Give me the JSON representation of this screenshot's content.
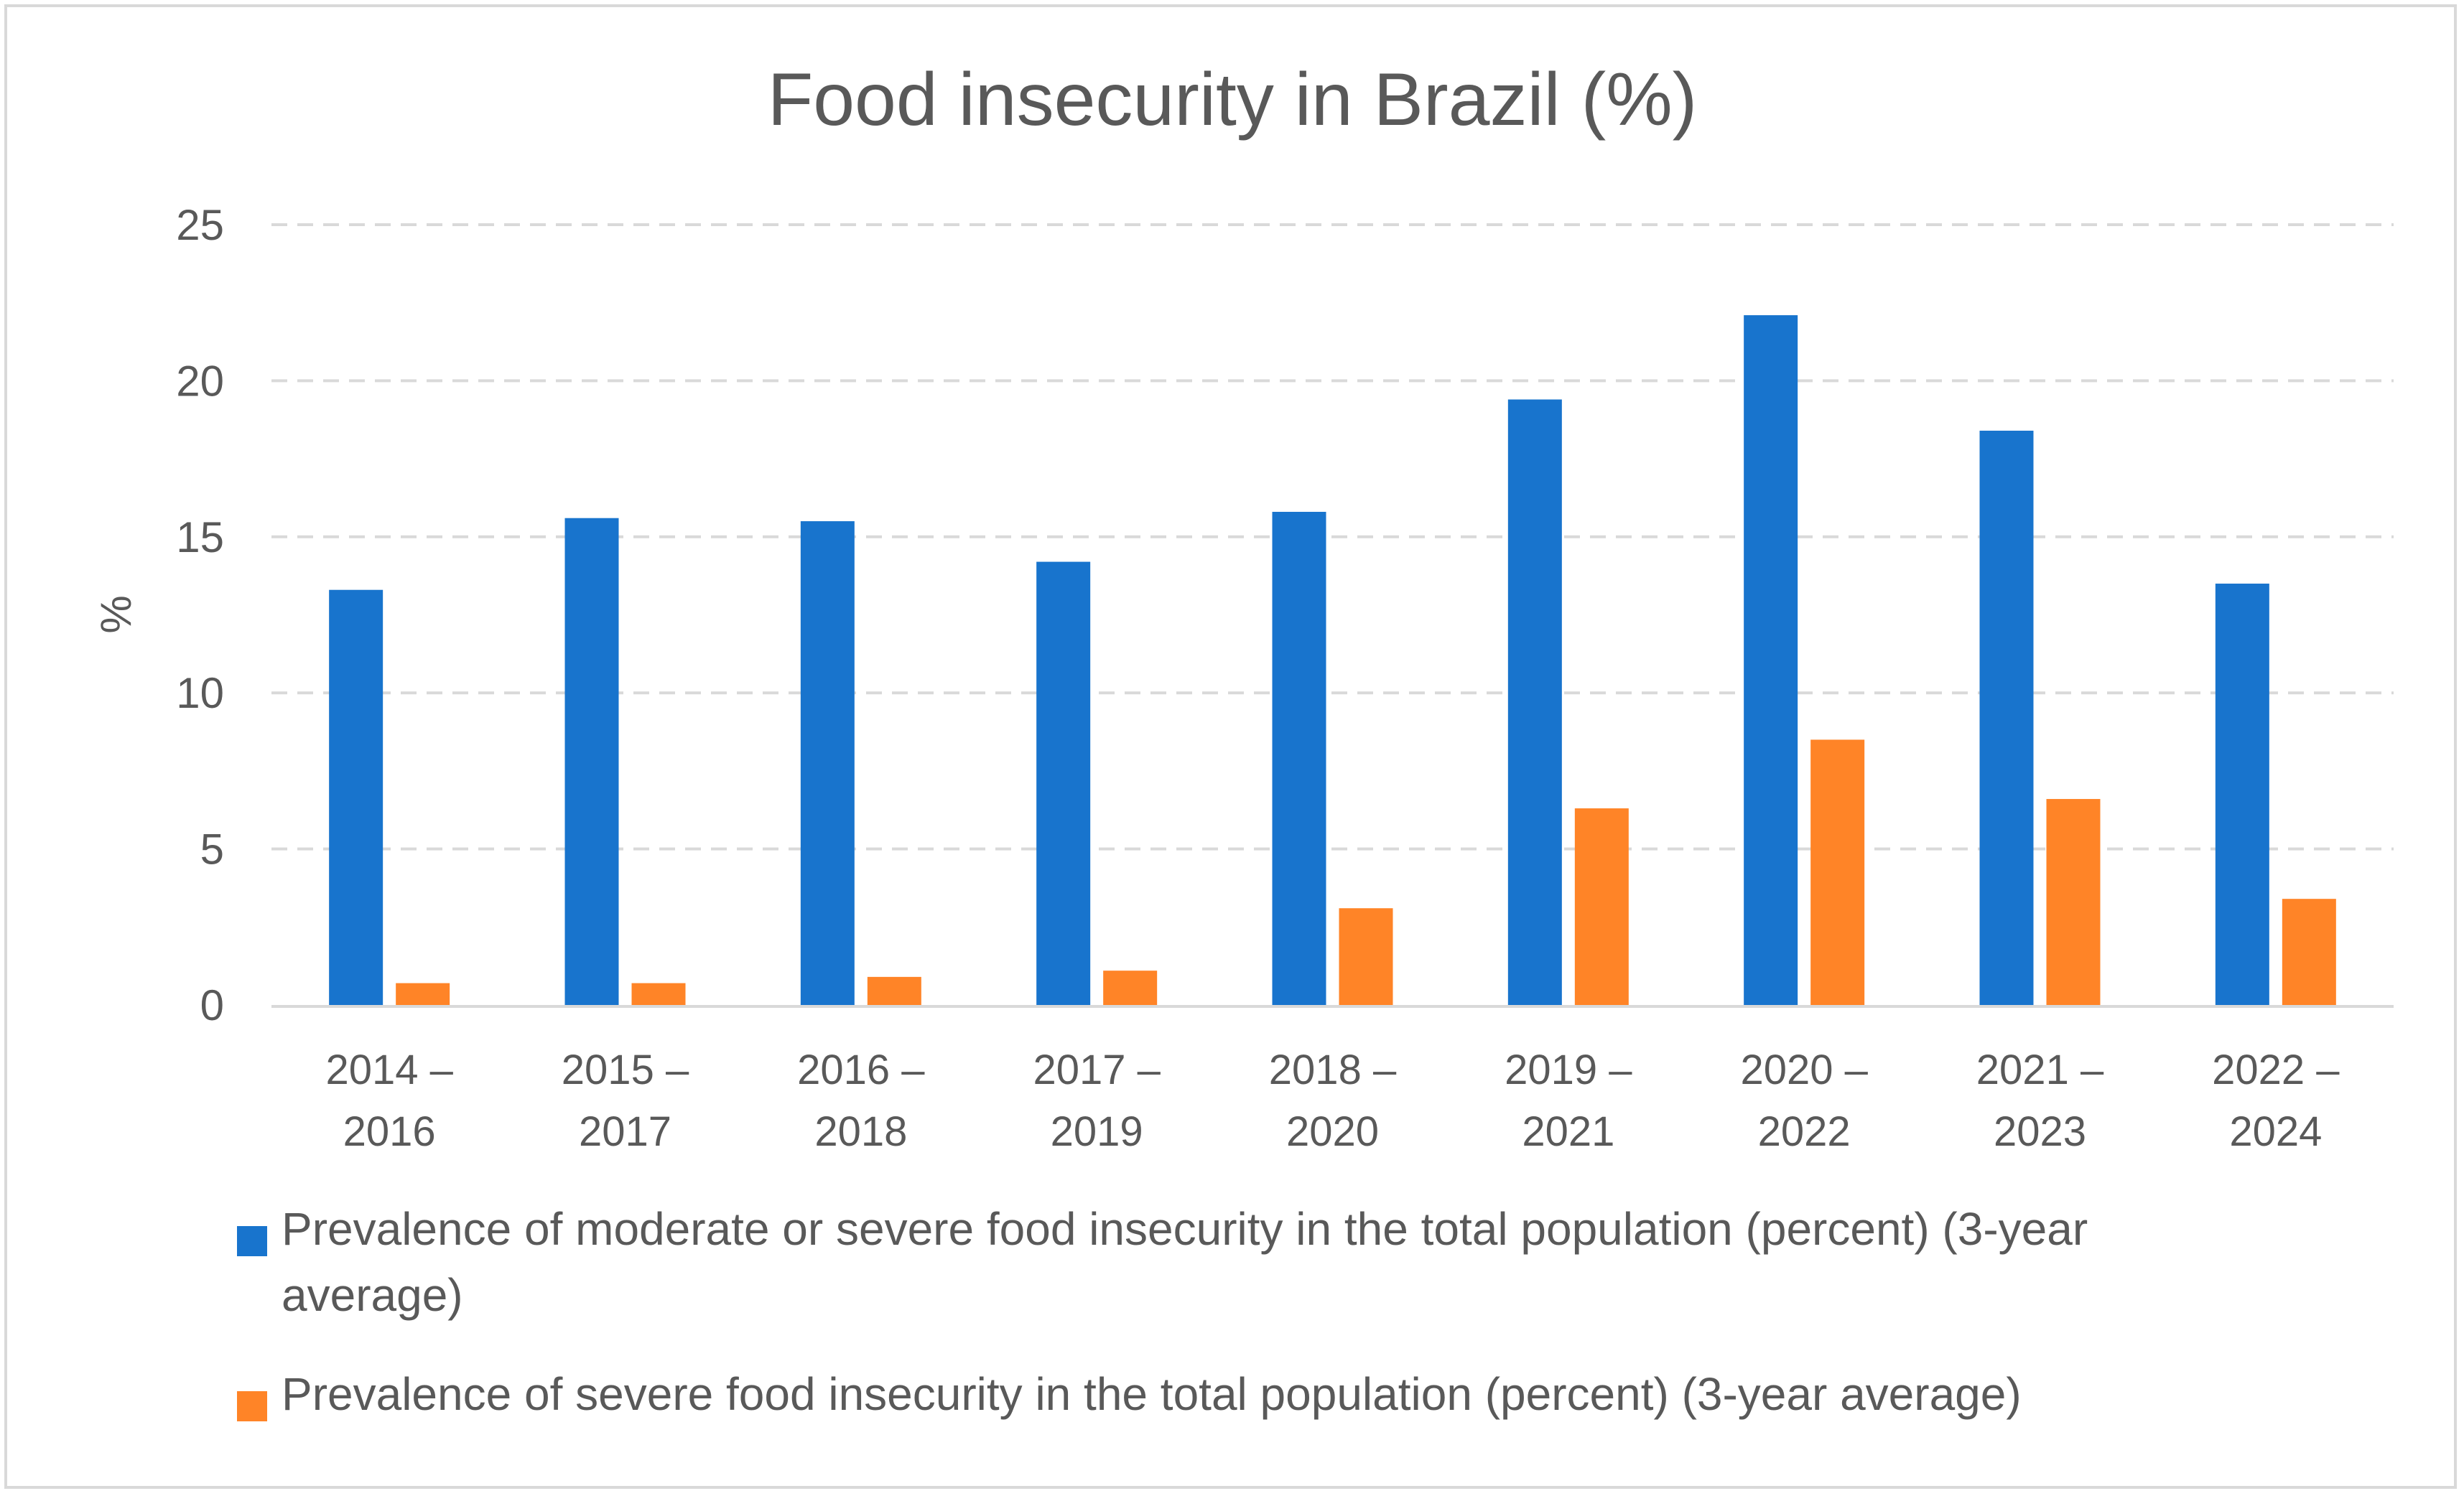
{
  "chart_data": {
    "type": "bar",
    "title": "Food insecurity in Brazil (%)",
    "xlabel": "",
    "ylabel": "%",
    "ylim": [
      0,
      25
    ],
    "yticks": [
      "0",
      "5",
      "10",
      "15",
      "20",
      "25"
    ],
    "grid": true,
    "legend_position": "bottom",
    "categories": [
      [
        "2014 –",
        "2016"
      ],
      [
        "2015 –",
        "2017"
      ],
      [
        "2016 –",
        "2018"
      ],
      [
        "2017 –",
        "2019"
      ],
      [
        "2018 –",
        "2020"
      ],
      [
        "2019 –",
        "2021"
      ],
      [
        "2020 –",
        "2022"
      ],
      [
        "2021 –",
        "2023"
      ],
      [
        "2022 –",
        "2024"
      ]
    ],
    "series": [
      {
        "name": "Prevalence of moderate or severe food insecurity in the total population (percent) (3-year average)",
        "legend_lines": [
          "Prevalence of moderate or severe food insecurity in the total population (percent) (3-year",
          "average)"
        ],
        "color": "#1874cd",
        "values": [
          13.3,
          15.6,
          15.5,
          14.2,
          15.8,
          19.4,
          22.1,
          18.4,
          13.5
        ]
      },
      {
        "name": "Prevalence of severe food insecurity in the total population (percent) (3-year average)",
        "legend_lines": [
          "Prevalence of severe food insecurity in the total population (percent) (3-year average)"
        ],
        "color": "#ff8427",
        "values": [
          0.7,
          0.7,
          0.9,
          1.1,
          3.1,
          6.3,
          8.5,
          6.6,
          3.4
        ]
      }
    ]
  }
}
